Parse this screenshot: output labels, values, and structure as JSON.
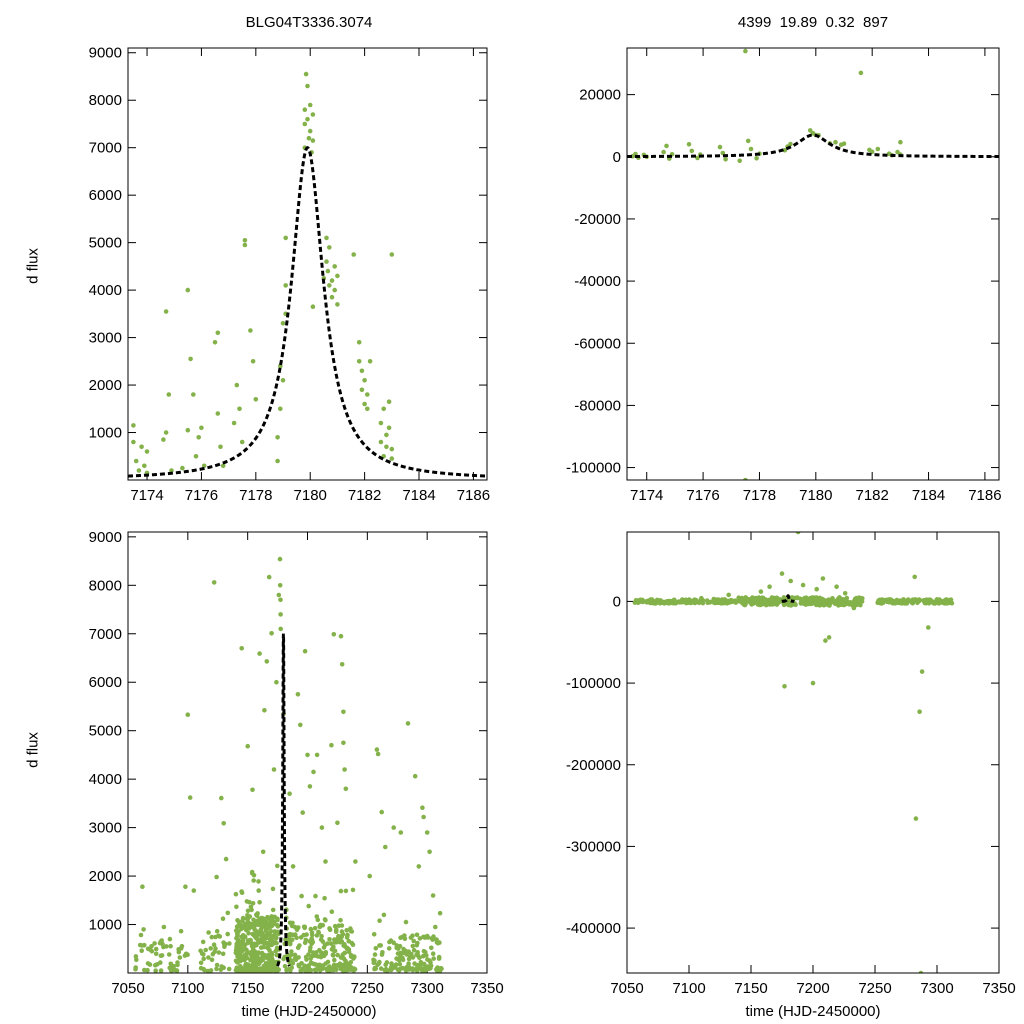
{
  "titles": {
    "left": "BLG04T3336.3074",
    "right": "4399  19.89  0.32  897"
  },
  "labels": {
    "ylabel_top": "d flux",
    "ylabel_bottom": "d flux",
    "xlabel_left": "time (HJD-2450000)",
    "xlabel_right": "time (HJD-2450000)"
  },
  "colors": {
    "points": "#84b24a",
    "model": "#000000"
  },
  "chart_data": [
    {
      "name": "zoom-linear",
      "type": "scatter",
      "xlim": [
        7173.3,
        7186.5
      ],
      "ylim": [
        0,
        9100
      ],
      "xticks": [
        7174,
        7176,
        7178,
        7180,
        7182,
        7184,
        7186
      ],
      "yticks": [
        1000,
        2000,
        3000,
        4000,
        5000,
        6000,
        7000,
        8000,
        9000
      ],
      "model": {
        "t0": 7179.9,
        "peak": 7000,
        "tau": 0.72
      },
      "points": [
        [
          7173.5,
          1150
        ],
        [
          7173.5,
          800
        ],
        [
          7173.6,
          400
        ],
        [
          7173.7,
          200
        ],
        [
          7173.8,
          700
        ],
        [
          7173.9,
          300
        ],
        [
          7174.0,
          600
        ],
        [
          7174.0,
          150
        ],
        [
          7174.6,
          850
        ],
        [
          7174.7,
          1000
        ],
        [
          7174.7,
          3550
        ],
        [
          7174.8,
          1800
        ],
        [
          7174.9,
          200
        ],
        [
          7175.3,
          250
        ],
        [
          7175.5,
          4000
        ],
        [
          7175.5,
          1050
        ],
        [
          7175.6,
          2550
        ],
        [
          7175.7,
          1800
        ],
        [
          7175.8,
          500
        ],
        [
          7175.9,
          900
        ],
        [
          7176.0,
          1100
        ],
        [
          7176.1,
          300
        ],
        [
          7176.6,
          3100
        ],
        [
          7176.5,
          2900
        ],
        [
          7176.6,
          1400
        ],
        [
          7176.7,
          700
        ],
        [
          7176.8,
          300
        ],
        [
          7177.2,
          1200
        ],
        [
          7177.3,
          2000
        ],
        [
          7177.4,
          1500
        ],
        [
          7177.5,
          800
        ],
        [
          7177.6,
          5050
        ],
        [
          7177.6,
          4950
        ],
        [
          7177.8,
          3150
        ],
        [
          7177.9,
          2500
        ],
        [
          7178.0,
          1700
        ],
        [
          7178.8,
          900
        ],
        [
          7178.8,
          400
        ],
        [
          7178.9,
          1500
        ],
        [
          7178.9,
          2400
        ],
        [
          7179.0,
          2100
        ],
        [
          7179.0,
          3300
        ],
        [
          7179.1,
          4100
        ],
        [
          7179.1,
          5100
        ],
        [
          7179.1,
          3500
        ],
        [
          7179.8,
          7000
        ],
        [
          7179.8,
          7500
        ],
        [
          7179.8,
          7800
        ],
        [
          7179.85,
          8550
        ],
        [
          7179.9,
          8300
        ],
        [
          7179.9,
          7600
        ],
        [
          7179.95,
          7200
        ],
        [
          7180.0,
          7900
        ],
        [
          7180.0,
          7350
        ],
        [
          7180.05,
          6900
        ],
        [
          7180.1,
          7700
        ],
        [
          7180.1,
          7150
        ],
        [
          7180.1,
          3650
        ],
        [
          7180.5,
          4250
        ],
        [
          7180.6,
          5100
        ],
        [
          7180.6,
          4600
        ],
        [
          7180.65,
          4400
        ],
        [
          7180.7,
          4900
        ],
        [
          7180.7,
          4100
        ],
        [
          7180.8,
          4200
        ],
        [
          7180.8,
          3850
        ],
        [
          7180.9,
          4500
        ],
        [
          7180.9,
          4000
        ],
        [
          7181.0,
          3700
        ],
        [
          7181.0,
          4300
        ],
        [
          7181.6,
          4750
        ],
        [
          7181.8,
          2900
        ],
        [
          7181.8,
          2500
        ],
        [
          7181.9,
          1900
        ],
        [
          7181.9,
          2300
        ],
        [
          7182.0,
          1600
        ],
        [
          7182.0,
          2100
        ],
        [
          7182.1,
          1500
        ],
        [
          7182.1,
          1800
        ],
        [
          7182.2,
          2500
        ],
        [
          7182.6,
          1200
        ],
        [
          7182.6,
          800
        ],
        [
          7182.7,
          1500
        ],
        [
          7182.7,
          500
        ],
        [
          7182.8,
          950
        ],
        [
          7182.8,
          700
        ],
        [
          7182.9,
          1650
        ],
        [
          7182.9,
          1100
        ],
        [
          7183.0,
          650
        ],
        [
          7183.0,
          4750
        ],
        [
          7183.0,
          450
        ]
      ]
    },
    {
      "name": "zoom-wide",
      "type": "scatter",
      "xlim": [
        7173.3,
        7186.5
      ],
      "ylim": [
        -104000,
        35000
      ],
      "xticks": [
        7174,
        7176,
        7178,
        7180,
        7182,
        7184,
        7186
      ],
      "yticks": [
        -100000,
        -80000,
        -60000,
        -40000,
        -20000,
        0,
        20000
      ],
      "model": {
        "t0": 7179.9,
        "peak": 7000,
        "tau": 0.72
      },
      "points": [
        [
          7173.5,
          200
        ],
        [
          7173.6,
          900
        ],
        [
          7173.7,
          -300
        ],
        [
          7173.9,
          600
        ],
        [
          7174.0,
          0
        ],
        [
          7174.6,
          1500
        ],
        [
          7174.7,
          3500
        ],
        [
          7174.8,
          -600
        ],
        [
          7174.9,
          800
        ],
        [
          7175.5,
          4000
        ],
        [
          7175.6,
          1900
        ],
        [
          7175.8,
          -400
        ],
        [
          7175.9,
          700
        ],
        [
          7176.6,
          3100
        ],
        [
          7176.7,
          1200
        ],
        [
          7176.8,
          -800
        ],
        [
          7177.3,
          -1300
        ],
        [
          7177.5,
          34000
        ],
        [
          7177.5,
          -104000
        ],
        [
          7177.6,
          5100
        ],
        [
          7177.7,
          2500
        ],
        [
          7177.9,
          -500
        ],
        [
          7178.0,
          1000
        ],
        [
          7178.9,
          2100
        ],
        [
          7179.0,
          3300
        ],
        [
          7179.1,
          4100
        ],
        [
          7179.8,
          8500
        ],
        [
          7179.9,
          7600
        ],
        [
          7180.0,
          7000
        ],
        [
          7180.1,
          6900
        ],
        [
          7180.5,
          4300
        ],
        [
          7180.7,
          4700
        ],
        [
          7180.9,
          3900
        ],
        [
          7181.0,
          4200
        ],
        [
          7181.6,
          27000
        ],
        [
          7181.9,
          2200
        ],
        [
          7182.0,
          1600
        ],
        [
          7182.2,
          2500
        ],
        [
          7182.6,
          1000
        ],
        [
          7182.7,
          500
        ],
        [
          7182.9,
          1500
        ],
        [
          7183.0,
          4700
        ],
        [
          7183.0,
          700
        ]
      ]
    },
    {
      "name": "full-linear",
      "type": "scatter",
      "xlim": [
        7050,
        7350
      ],
      "ylim": [
        0,
        9100
      ],
      "xticks": [
        7050,
        7100,
        7150,
        7200,
        7250,
        7300,
        7350
      ],
      "yticks": [
        1000,
        2000,
        3000,
        4000,
        5000,
        6000,
        7000,
        8000,
        9000
      ],
      "model": {
        "t0": 7179.9,
        "peak": 7000,
        "tau": 0.72
      },
      "outliers": [
        [
          7062,
          1780
        ],
        [
          7063,
          900
        ],
        [
          7070,
          450
        ],
        [
          7080,
          950
        ],
        [
          7085,
          700
        ],
        [
          7098,
          1780
        ],
        [
          7100,
          5330
        ],
        [
          7102,
          3620
        ],
        [
          7105,
          1700
        ],
        [
          7112,
          400
        ],
        [
          7122,
          8060
        ],
        [
          7124,
          1980
        ],
        [
          7128,
          3610
        ],
        [
          7130,
          3090
        ],
        [
          7132,
          2350
        ],
        [
          7145,
          6700
        ],
        [
          7150,
          4680
        ],
        [
          7154,
          3780
        ],
        [
          7160,
          6590
        ],
        [
          7163,
          2500
        ],
        [
          7164,
          5420
        ],
        [
          7166,
          6430
        ],
        [
          7168,
          8170
        ],
        [
          7170,
          7010
        ],
        [
          7172,
          4200
        ],
        [
          7174,
          6000
        ],
        [
          7176,
          7800
        ],
        [
          7180,
          5350
        ],
        [
          7185,
          3700
        ],
        [
          7188,
          2200
        ],
        [
          7192,
          5750
        ],
        [
          7194,
          5120
        ],
        [
          7196,
          3310
        ],
        [
          7198,
          6640
        ],
        [
          7200,
          4500
        ],
        [
          7202,
          3850
        ],
        [
          7205,
          4150
        ],
        [
          7208,
          4500
        ],
        [
          7212,
          3000
        ],
        [
          7215,
          2300
        ],
        [
          7220,
          4700
        ],
        [
          7222,
          6990
        ],
        [
          7225,
          3100
        ],
        [
          7228,
          6950
        ],
        [
          7229,
          6370
        ],
        [
          7230,
          5390
        ],
        [
          7230,
          4750
        ],
        [
          7231,
          4200
        ],
        [
          7232,
          3800
        ],
        [
          7240,
          2300
        ],
        [
          7252,
          2000
        ],
        [
          7258,
          4610
        ],
        [
          7259,
          4520
        ],
        [
          7262,
          3320
        ],
        [
          7265,
          2600
        ],
        [
          7272,
          3000
        ],
        [
          7278,
          2900
        ],
        [
          7284,
          5150
        ],
        [
          7290,
          4060
        ],
        [
          7293,
          2200
        ],
        [
          7296,
          3410
        ],
        [
          7297,
          3220
        ],
        [
          7300,
          2900
        ],
        [
          7302,
          2500
        ],
        [
          7305,
          1600
        ]
      ],
      "clusters": [
        {
          "x": [
            7056,
            7100
          ],
          "n": 55,
          "ymax": 700
        },
        {
          "x": [
            7110,
            7135
          ],
          "n": 40,
          "ymax": 900
        },
        {
          "x": [
            7140,
            7176
          ],
          "n": 420,
          "ymax": 1200
        },
        {
          "x": [
            7180,
            7240
          ],
          "n": 260,
          "ymax": 1000
        },
        {
          "x": [
            7255,
            7312
          ],
          "n": 160,
          "ymax": 800
        }
      ],
      "peak_points": [
        [
          7177,
          8540
        ],
        [
          7177.2,
          8000
        ],
        [
          7177.4,
          7700
        ],
        [
          7177.5,
          7400
        ],
        [
          7177.6,
          7100
        ]
      ]
    },
    {
      "name": "full-wide",
      "type": "scatter",
      "xlim": [
        7050,
        7350
      ],
      "ylim": [
        -455000,
        85000
      ],
      "xticks": [
        7050,
        7100,
        7150,
        7200,
        7250,
        7300,
        7350
      ],
      "yticks": [
        -400000,
        -300000,
        -200000,
        -100000,
        0
      ],
      "model": {
        "t0": 7179.9,
        "peak": 7000,
        "tau": 0.72
      },
      "outliers": [
        [
          7073,
          -2500
        ],
        [
          7110,
          4000
        ],
        [
          7120,
          3000
        ],
        [
          7132,
          8000
        ],
        [
          7158,
          12000
        ],
        [
          7165,
          18000
        ],
        [
          7168,
          -3000
        ],
        [
          7175,
          34000
        ],
        [
          7177,
          -104000
        ],
        [
          7182,
          25000
        ],
        [
          7186,
          -4000
        ],
        [
          7188,
          85000
        ],
        [
          7192,
          20000
        ],
        [
          7196,
          -3000
        ],
        [
          7200,
          -100000
        ],
        [
          7203,
          15000
        ],
        [
          7208,
          28000
        ],
        [
          7210,
          -48000
        ],
        [
          7213,
          -44000
        ],
        [
          7219,
          18000
        ],
        [
          7226,
          10000
        ],
        [
          7233,
          -8000
        ],
        [
          7282,
          30000
        ],
        [
          7283,
          -266000
        ],
        [
          7286,
          -135000
        ],
        [
          7288,
          -86000
        ],
        [
          7293,
          -32000
        ],
        [
          7287,
          -455000
        ]
      ],
      "clusters": [
        {
          "x": [
            7056,
            7138
          ],
          "n": 140,
          "yspread": 2500
        },
        {
          "x": [
            7140,
            7240
          ],
          "n": 260,
          "yspread": 5000
        },
        {
          "x": [
            7252,
            7312
          ],
          "n": 140,
          "yspread": 2500
        }
      ]
    }
  ]
}
